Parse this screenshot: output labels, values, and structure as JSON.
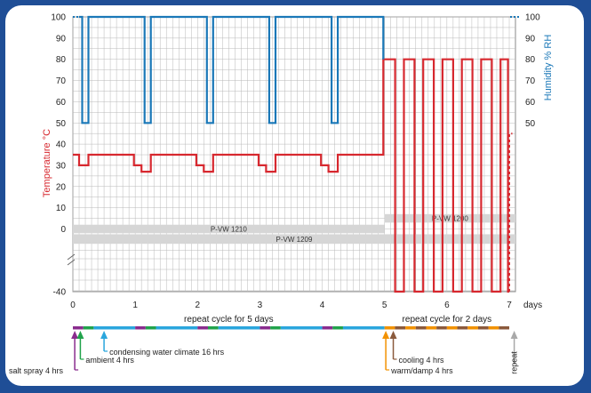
{
  "colors": {
    "frame_background": "#1f4e96",
    "temperature": "#d7282f",
    "humidity": "#1a78b8",
    "grid": "#b8b8b8",
    "band": "#d6d6d6",
    "salt_spray": "#8a2c8e",
    "ambient": "#21a34b",
    "condensing": "#2aa6dd",
    "warm_damp": "#f29200",
    "cooling": "#8b5a3c",
    "repeat": "#a9a9a9"
  },
  "chart_data": {
    "type": "line",
    "xlabel": "days",
    "ylabel_left": "Temperature °C",
    "ylabel_right": "Humidity % RH",
    "xlim": [
      0,
      7
    ],
    "x_ticks": [
      "0",
      "1",
      "2",
      "3",
      "4",
      "5",
      "6",
      "7"
    ],
    "y_left_ticks": [
      "100",
      "90",
      "80",
      "70",
      "60",
      "50",
      "40",
      "30",
      "20",
      "10",
      "0",
      "-40"
    ],
    "y_right_ticks": [
      "100",
      "90",
      "80",
      "70",
      "60",
      "50"
    ],
    "axis_break": "between 0 and -40",
    "grid": true,
    "series": [
      {
        "name": "Temperature °C",
        "axis": "left",
        "color": "#d7282f",
        "points": [
          [
            0,
            35
          ],
          [
            0.1,
            35
          ],
          [
            0.1,
            30
          ],
          [
            0.25,
            30
          ],
          [
            0.25,
            35
          ],
          [
            0.98,
            35
          ],
          [
            0.98,
            30
          ],
          [
            1.1,
            30
          ],
          [
            1.1,
            27
          ],
          [
            1.25,
            27
          ],
          [
            1.25,
            35
          ],
          [
            1.98,
            35
          ],
          [
            1.98,
            30
          ],
          [
            2.1,
            30
          ],
          [
            2.1,
            27
          ],
          [
            2.25,
            27
          ],
          [
            2.25,
            35
          ],
          [
            2.98,
            35
          ],
          [
            2.98,
            30
          ],
          [
            3.1,
            30
          ],
          [
            3.1,
            27
          ],
          [
            3.25,
            27
          ],
          [
            3.25,
            35
          ],
          [
            3.98,
            35
          ],
          [
            3.98,
            30
          ],
          [
            4.1,
            30
          ],
          [
            4.1,
            27
          ],
          [
            4.25,
            27
          ],
          [
            4.25,
            35
          ],
          [
            4.98,
            35
          ],
          [
            4.98,
            80
          ],
          [
            5.17,
            80
          ],
          [
            5.17,
            -40
          ],
          [
            5.31,
            -40
          ],
          [
            5.31,
            80
          ],
          [
            5.48,
            80
          ],
          [
            5.48,
            -40
          ],
          [
            5.62,
            -40
          ],
          [
            5.62,
            80
          ],
          [
            5.79,
            80
          ],
          [
            5.79,
            -40
          ],
          [
            5.93,
            -40
          ],
          [
            5.93,
            80
          ],
          [
            6.1,
            80
          ],
          [
            6.1,
            -40
          ],
          [
            6.24,
            -40
          ],
          [
            6.24,
            80
          ],
          [
            6.41,
            80
          ],
          [
            6.41,
            -40
          ],
          [
            6.55,
            -40
          ],
          [
            6.55,
            80
          ],
          [
            6.72,
            80
          ],
          [
            6.72,
            -40
          ],
          [
            6.86,
            -40
          ],
          [
            6.86,
            80
          ],
          [
            6.98,
            80
          ],
          [
            6.98,
            -40
          ],
          [
            7.0,
            -40
          ]
        ],
        "repeat_dashed": [
          [
            7.0,
            -40
          ],
          [
            7.0,
            45
          ],
          [
            7.05,
            45
          ]
        ]
      },
      {
        "name": "Humidity % RH",
        "axis": "right",
        "color": "#1a78b8",
        "points": [
          [
            0.1,
            100
          ],
          [
            0.15,
            100
          ],
          [
            0.15,
            50
          ],
          [
            0.25,
            50
          ],
          [
            0.25,
            100
          ],
          [
            1.15,
            100
          ],
          [
            1.15,
            50
          ],
          [
            1.25,
            50
          ],
          [
            1.25,
            100
          ],
          [
            2.15,
            100
          ],
          [
            2.15,
            50
          ],
          [
            2.25,
            50
          ],
          [
            2.25,
            100
          ],
          [
            3.15,
            100
          ],
          [
            3.15,
            50
          ],
          [
            3.25,
            50
          ],
          [
            3.25,
            100
          ],
          [
            4.15,
            100
          ],
          [
            4.15,
            50
          ],
          [
            4.25,
            50
          ],
          [
            4.25,
            100
          ],
          [
            4.98,
            100
          ],
          [
            4.98,
            80
          ]
        ]
      }
    ],
    "bands": [
      {
        "label": "P-VW 1210",
        "x_start": 0,
        "x_end": 5,
        "y_top": 2,
        "y_bottom": -2
      },
      {
        "label": "P-VW 1209",
        "x_start": 0,
        "x_end": 7.1,
        "y_top": -2.5,
        "y_bottom": -7
      },
      {
        "label": "P-VW 1200",
        "x_start": 5,
        "x_end": 7.1,
        "y_top": 7,
        "y_bottom": 3
      }
    ],
    "cycle_labels": [
      "repeat cycle for 5 days",
      "repeat cycle for 2 days"
    ],
    "phase_legend": [
      {
        "label": "salt spray 4 hrs",
        "x": 0.03,
        "color": "#8a2c8e"
      },
      {
        "label": "ambient 4 hrs",
        "x": 0.12,
        "color": "#21a34b"
      },
      {
        "label": "condensing water climate 16 hrs",
        "x": 0.5,
        "color": "#2aa6dd"
      },
      {
        "label": "warm/damp 4 hrs",
        "x": 5.02,
        "color": "#f29200"
      },
      {
        "label": "cooling 4 hrs",
        "x": 5.14,
        "color": "#8b5a3c"
      },
      {
        "label": "repeat",
        "x": 7.08,
        "color": "#a9a9a9"
      }
    ]
  }
}
